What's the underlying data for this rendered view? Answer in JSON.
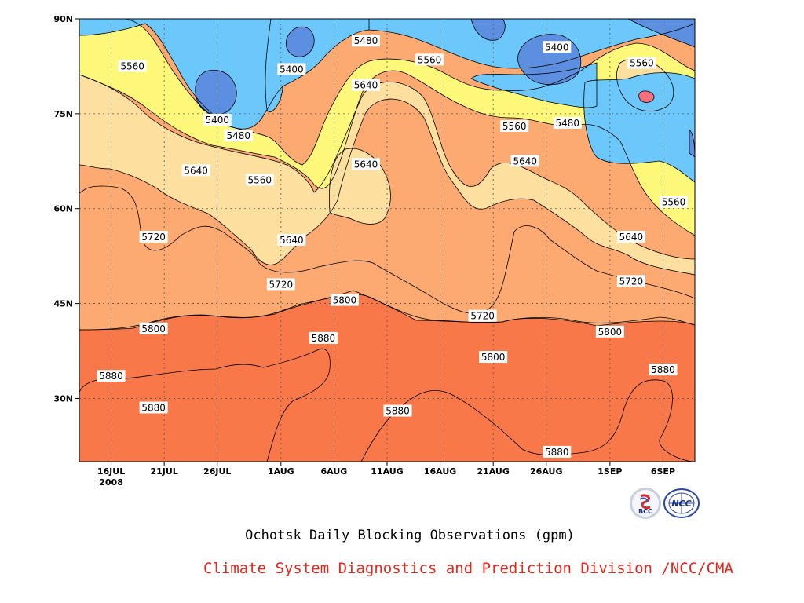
{
  "chart_data": {
    "type": "contour",
    "title": "Ochotsk Daily Blocking Observations (gpm)",
    "credit": "Climate System Diagnostics and Prediction Division /NCC/CMA",
    "xlabel": "",
    "ylabel": "",
    "x_range": [
      "2008-07-13",
      "2008-09-09"
    ],
    "y_range": [
      20,
      90
    ],
    "x_tick_labels": [
      {
        "date": "2008-07-16",
        "label": "16JUL",
        "sublabel": "2008"
      },
      {
        "date": "2008-07-21",
        "label": "21JUL"
      },
      {
        "date": "2008-07-26",
        "label": "26JUL"
      },
      {
        "date": "2008-08-01",
        "label": "1AUG"
      },
      {
        "date": "2008-08-06",
        "label": "6AUG"
      },
      {
        "date": "2008-08-11",
        "label": "11AUG"
      },
      {
        "date": "2008-08-16",
        "label": "16AUG"
      },
      {
        "date": "2008-08-21",
        "label": "21AUG"
      },
      {
        "date": "2008-08-26",
        "label": "26AUG"
      },
      {
        "date": "2008-09-01",
        "label": "1SEP"
      },
      {
        "date": "2008-09-06",
        "label": "6SEP"
      }
    ],
    "y_tick_labels": [
      {
        "lat": 30,
        "label": "30N"
      },
      {
        "lat": 45,
        "label": "45N"
      },
      {
        "lat": 60,
        "label": "60N"
      },
      {
        "lat": 75,
        "label": "75N"
      },
      {
        "lat": 90,
        "label": "90N"
      }
    ],
    "grid": true,
    "levels": [
      5400,
      5480,
      5560,
      5640,
      5720,
      5800,
      5880
    ],
    "band_colors": [
      "#5c8fe0",
      "#6cc8fb",
      "#fdf87a",
      "#fde0a0",
      "#fcaa72",
      "#f8784a",
      "#f4717c",
      "#f03a4e"
    ],
    "contour_labels": [
      {
        "text": "5480",
        "date": "2008-08-09",
        "lat": 86.5
      },
      {
        "text": "5400",
        "date": "2008-08-02",
        "lat": 82
      },
      {
        "text": "5560",
        "date": "2008-07-18",
        "lat": 82.5
      },
      {
        "text": "5560",
        "date": "2008-08-15",
        "lat": 83.5
      },
      {
        "text": "5640",
        "date": "2008-08-09",
        "lat": 79.5
      },
      {
        "text": "5400",
        "date": "2008-08-27",
        "lat": 85.5
      },
      {
        "text": "5560",
        "date": "2008-09-04",
        "lat": 83
      },
      {
        "text": "5400",
        "date": "2008-07-26",
        "lat": 74
      },
      {
        "text": "5480",
        "date": "2008-07-28",
        "lat": 71.5
      },
      {
        "text": "5560",
        "date": "2008-08-23",
        "lat": 73
      },
      {
        "text": "5480",
        "date": "2008-08-28",
        "lat": 73.5
      },
      {
        "text": "5640",
        "date": "2008-07-24",
        "lat": 66
      },
      {
        "text": "5560",
        "date": "2008-07-30",
        "lat": 64.5
      },
      {
        "text": "5640",
        "date": "2008-08-09",
        "lat": 67
      },
      {
        "text": "5640",
        "date": "2008-08-24",
        "lat": 67.5
      },
      {
        "text": "5560",
        "date": "2008-09-07",
        "lat": 61
      },
      {
        "text": "5720",
        "date": "2008-07-20",
        "lat": 55.5
      },
      {
        "text": "5640",
        "date": "2008-08-02",
        "lat": 55
      },
      {
        "text": "5640",
        "date": "2008-09-03",
        "lat": 55.5
      },
      {
        "text": "5720",
        "date": "2008-08-01",
        "lat": 48
      },
      {
        "text": "5720",
        "date": "2008-09-03",
        "lat": 48.5
      },
      {
        "text": "5800",
        "date": "2008-08-07",
        "lat": 45.5
      },
      {
        "text": "5720",
        "date": "2008-08-20",
        "lat": 43
      },
      {
        "text": "5800",
        "date": "2008-07-20",
        "lat": 41
      },
      {
        "text": "5800",
        "date": "2008-09-01",
        "lat": 40.5
      },
      {
        "text": "5880",
        "date": "2008-08-05",
        "lat": 39.5
      },
      {
        "text": "5800",
        "date": "2008-08-21",
        "lat": 36.5
      },
      {
        "text": "5880",
        "date": "2008-07-16",
        "lat": 33.5
      },
      {
        "text": "5880",
        "date": "2008-09-06",
        "lat": 34.5
      },
      {
        "text": "5880",
        "date": "2008-07-20",
        "lat": 28.5
      },
      {
        "text": "5880",
        "date": "2008-08-12",
        "lat": 28
      },
      {
        "text": "5880",
        "date": "2008-08-27",
        "lat": 21.5
      }
    ]
  },
  "colors": {
    "credit": "#e8261c",
    "logo_bcc_ring": "#c8d0e0",
    "logo_ncc": "#2848a8"
  },
  "icons": {
    "logo_left": "bcc-logo-icon",
    "logo_right": "ncc-wmo-logo-icon"
  },
  "logos": {
    "bcc_text": "BCC",
    "ncc_text": "NCC"
  }
}
